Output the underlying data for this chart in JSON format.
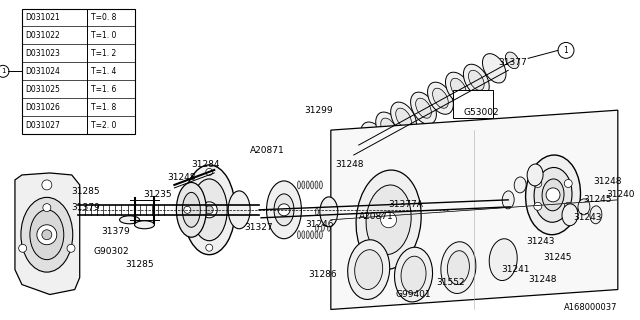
{
  "bg_color": "#ffffff",
  "diagram_number": "A168000037",
  "table_rows": [
    [
      "D031021",
      "T=0. 8"
    ],
    [
      "D031022",
      "T=1. 0"
    ],
    [
      "D031023",
      "T=1. 2"
    ],
    [
      "D031024",
      "T=1. 4"
    ],
    [
      "D031025",
      "T=1. 6"
    ],
    [
      "D031026",
      "T=1. 8"
    ],
    [
      "D031027",
      "T=2. 0"
    ]
  ],
  "font_size": 6.5
}
